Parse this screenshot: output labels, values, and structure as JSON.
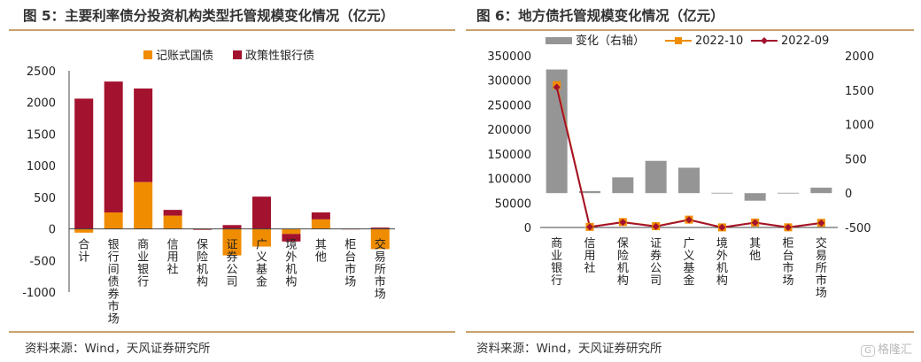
{
  "figure5": {
    "title": "图 5：主要利率债分投资机构类型托管规模变化情况（亿元）",
    "source": "资料来源：Wind，天风证券研究所",
    "chart_data": {
      "type": "bar",
      "stacked": true,
      "categories": [
        "合计",
        "银行间债券市场",
        "商业银行",
        "信用社",
        "保险机构",
        "证券公司",
        "广义基金",
        "境外机构",
        "其他",
        "柜台市场",
        "交易所市场"
      ],
      "series": [
        {
          "name": "记账式国债",
          "color": "#f08c00",
          "values": [
            -60,
            260,
            740,
            210,
            5,
            -420,
            -280,
            -80,
            150,
            2,
            -320
          ]
        },
        {
          "name": "政策性银行债",
          "color": "#a3122e",
          "values": [
            2060,
            2070,
            1480,
            90,
            -15,
            60,
            510,
            -120,
            110,
            -3,
            20
          ]
        }
      ],
      "ylim": [
        -1000,
        2500
      ],
      "yticks": [
        -1000,
        -500,
        0,
        500,
        1000,
        1500,
        2000,
        2500
      ],
      "legend_position": "top"
    }
  },
  "figure6": {
    "title": "图 6：地方债托管规模变化情况（亿元）",
    "source": "资料来源：Wind，天风证券研究所",
    "chart_data": {
      "type": "bar+line",
      "categories": [
        "商业银行",
        "信用社",
        "保险机构",
        "证券公司",
        "广义基金",
        "境外机构",
        "其他",
        "柜台市场",
        "交易所市场"
      ],
      "series": [
        {
          "name": "变化（右轴）",
          "type": "bar",
          "axis": "right",
          "color": "#959595",
          "values": [
            1800,
            30,
            230,
            470,
            370,
            5,
            -110,
            5,
            80
          ]
        },
        {
          "name": "2022-10",
          "type": "line",
          "axis": "left",
          "color": "#f08c00",
          "values": [
            290000,
            1200,
            11000,
            2600,
            16000,
            130,
            10000,
            300,
            9500
          ]
        },
        {
          "name": "2022-09",
          "type": "line",
          "axis": "left",
          "color": "#a3122e",
          "values": [
            286000,
            1150,
            10500,
            2100,
            15500,
            125,
            9800,
            290,
            9000
          ]
        }
      ],
      "ylim_left": [
        0,
        350000
      ],
      "yticks_left": [
        0,
        50000,
        100000,
        150000,
        200000,
        250000,
        300000,
        350000
      ],
      "ylim_right": [
        -500,
        2000
      ],
      "yticks_right": [
        -500,
        0,
        500,
        1000,
        1500,
        2000
      ],
      "legend_position": "top"
    }
  },
  "watermark": {
    "box": "G",
    "text": "格隆汇"
  }
}
